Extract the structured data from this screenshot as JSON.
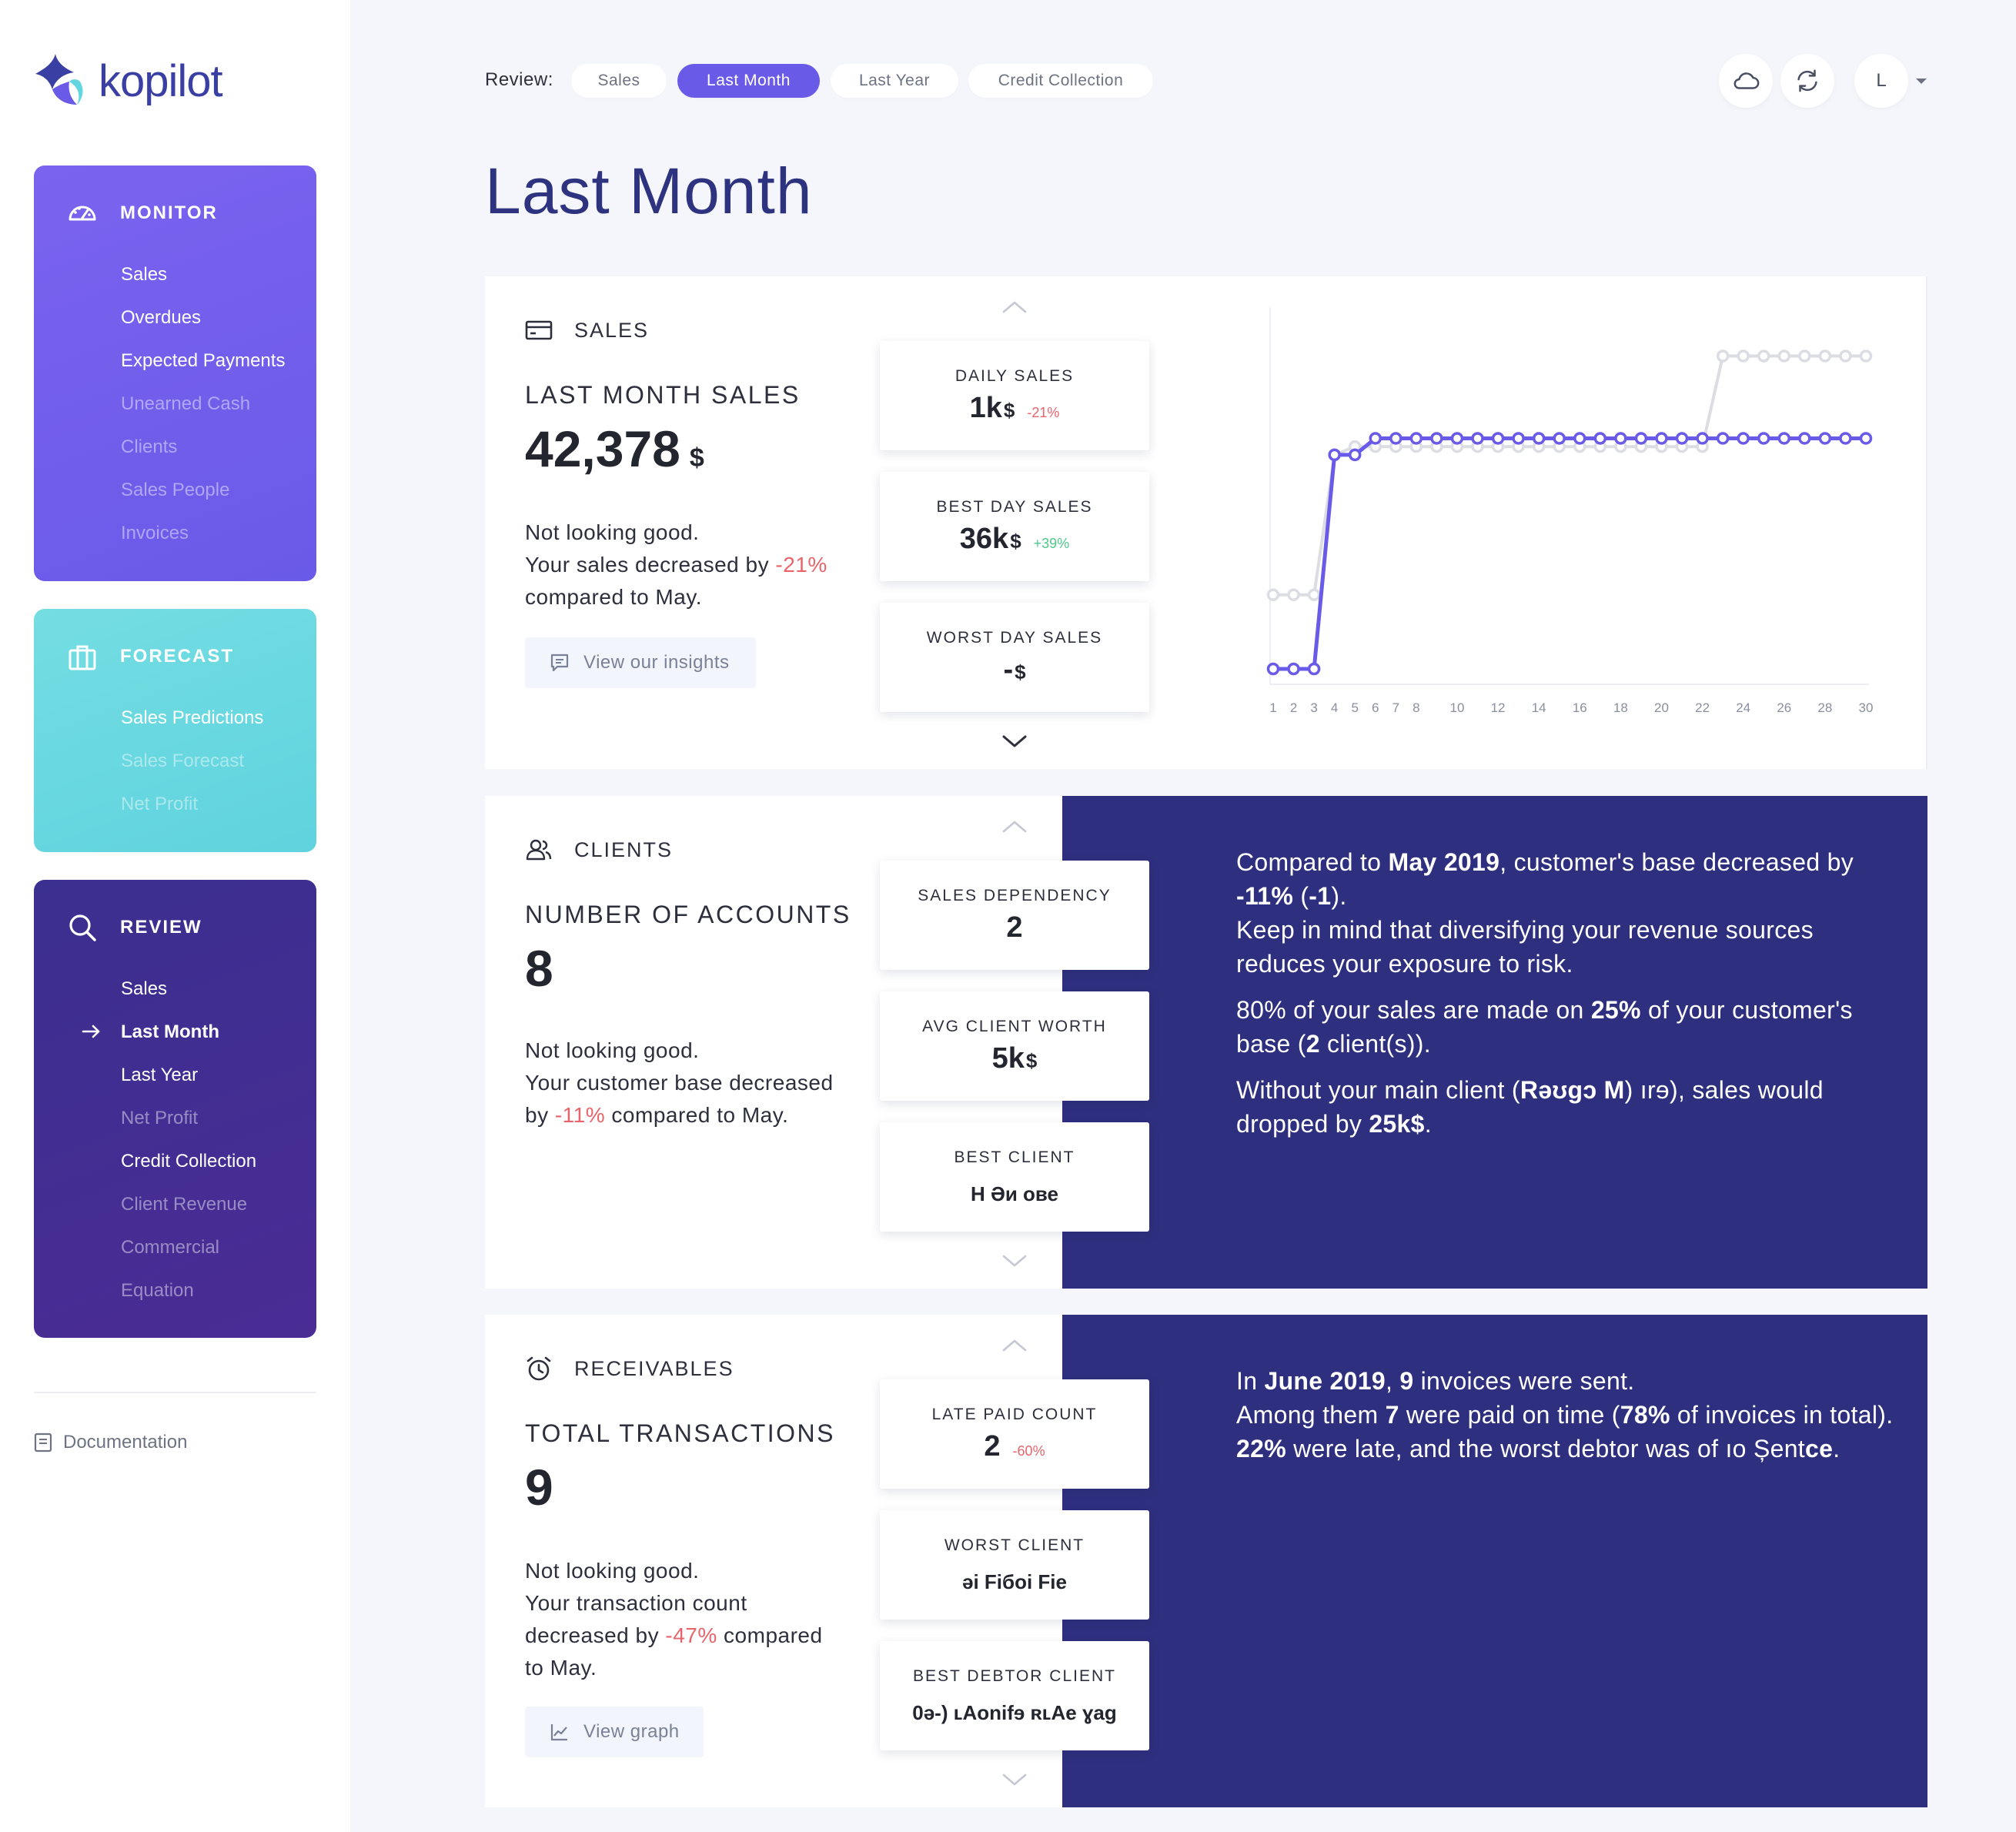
{
  "app": {
    "name": "kopilot"
  },
  "sidebar": {
    "monitor": {
      "title": "MONITOR",
      "items": [
        {
          "label": "Sales",
          "enabled": true
        },
        {
          "label": "Overdues",
          "enabled": true
        },
        {
          "label": "Expected Payments",
          "enabled": true
        },
        {
          "label": "Unearned Cash",
          "enabled": false
        },
        {
          "label": "Clients",
          "enabled": false
        },
        {
          "label": "Sales People",
          "enabled": false
        },
        {
          "label": "Invoices",
          "enabled": false
        }
      ]
    },
    "forecast": {
      "title": "FORECAST",
      "items": [
        {
          "label": "Sales Predictions",
          "enabled": true
        },
        {
          "label": "Sales Forecast",
          "enabled": false
        },
        {
          "label": "Net Profit",
          "enabled": false
        }
      ]
    },
    "review": {
      "title": "REVIEW",
      "items": [
        {
          "label": "Sales",
          "enabled": true
        },
        {
          "label": "Last Month",
          "enabled": true,
          "current": true
        },
        {
          "label": "Last Year",
          "enabled": true
        },
        {
          "label": "Net Profit",
          "enabled": false
        },
        {
          "label": "Credit Collection",
          "enabled": true
        },
        {
          "label": "Client Revenue",
          "enabled": false
        },
        {
          "label": "Commercial",
          "enabled": false
        },
        {
          "label": "Equation",
          "enabled": false
        }
      ]
    },
    "documentation": "Documentation"
  },
  "topbar": {
    "review_label": "Review:",
    "tabs": [
      "Sales",
      "Last Month",
      "Last Year",
      "Credit Collection"
    ],
    "active_tab": "Last Month",
    "user_initial": "L"
  },
  "page": {
    "title": "Last Month"
  },
  "sales": {
    "section_label": "SALES",
    "metric_label": "LAST MONTH SALES",
    "metric_value": "42,378",
    "metric_unit": "$",
    "narrative": {
      "line1": "Not looking good.",
      "line2_pre": "Your sales decreased by ",
      "line2_delta": "-21%",
      "line3": "compared to May."
    },
    "cta": "View our insights",
    "kpis": [
      {
        "label": "DAILY SALES",
        "value": "1k",
        "unit": "$",
        "delta": "-21%",
        "trend": "neg"
      },
      {
        "label": "BEST DAY SALES",
        "value": "36k",
        "unit": "$",
        "delta": "+39%",
        "trend": "pos"
      },
      {
        "label": "WORST DAY SALES",
        "value": "-",
        "unit": "$",
        "delta": "",
        "trend": ""
      }
    ]
  },
  "chart_data": {
    "type": "line",
    "title": "",
    "xlabel": "",
    "ylabel": "",
    "x_ticks": [
      1,
      2,
      3,
      4,
      5,
      6,
      7,
      8,
      10,
      12,
      14,
      16,
      18,
      20,
      22,
      24,
      26,
      28,
      30
    ],
    "x": [
      1,
      2,
      3,
      4,
      5,
      6,
      7,
      8,
      9,
      10,
      11,
      12,
      13,
      14,
      15,
      16,
      17,
      18,
      19,
      20,
      21,
      22,
      23,
      24,
      25,
      26,
      27,
      28,
      29,
      30
    ],
    "ylim": [
      0,
      43
    ],
    "grid": false,
    "legend": "none",
    "series": [
      {
        "color": "#6a5ae8",
        "values": [
          0,
          0,
          0,
          26,
          26,
          28,
          28,
          28,
          28,
          28,
          28,
          28,
          28,
          28,
          28,
          28,
          28,
          28,
          28,
          28,
          28,
          28,
          28,
          28,
          28,
          28,
          28,
          28,
          28,
          28
        ]
      },
      {
        "color": "#dcdde3",
        "values": [
          9,
          9,
          9,
          26,
          27,
          27,
          27,
          27,
          27,
          27,
          27,
          27,
          27,
          27,
          27,
          27,
          27,
          27,
          27,
          27,
          27,
          27,
          38,
          38,
          38,
          38,
          38,
          38,
          38,
          38
        ]
      }
    ]
  },
  "clients": {
    "section_label": "CLIENTS",
    "metric_label": "NUMBER OF ACCOUNTS",
    "metric_value": "8",
    "narrative": {
      "line1": "Not looking good.",
      "line2": "Your customer base decreased",
      "line3_pre": "by ",
      "line3_delta": "-11%",
      "line3_post": " compared to May."
    },
    "kpis": [
      {
        "label": "SALES DEPENDENCY",
        "value": "2"
      },
      {
        "label": "AVG CLIENT WORTH",
        "value": "5k",
        "unit": "$"
      },
      {
        "label": "BEST CLIENT",
        "value": "H       Әи ове"
      }
    ],
    "insight": {
      "p1_a": "Compared to ",
      "p1_b": "May 2019",
      "p1_c": ", customer's base decreased by ",
      "p1_d": "-11%",
      "p1_e": " (",
      "p1_f": "-1",
      "p1_g": ").",
      "p1_h": "Keep in mind that diversifying your revenue sources reduces your exposure to risk.",
      "p2_a": "80% of your sales are made on ",
      "p2_b": "25%",
      "p2_c": " of your customer's base (",
      "p2_d": "2",
      "p2_e": " client(s)).",
      "p3_a": "Without your main client (",
      "p3_b": "Rəʊɡɔ M",
      "p3_c": ") ırɘ",
      "p3_d": "), sales would dropped by ",
      "p3_e": "25k$",
      "p3_f": "."
    }
  },
  "receivables": {
    "section_label": "RECEIVABLES",
    "metric_label": "TOTAL TRANSACTIONS",
    "metric_value": "9",
    "narrative": {
      "line1": "Not looking good.",
      "line2": "Your transaction count",
      "line3_pre": "decreased by ",
      "line3_delta": "-47%",
      "line3_post": " compared",
      "line4": "to May."
    },
    "cta": "View graph",
    "kpis": [
      {
        "label": "LATE PAID COUNT",
        "value": "2",
        "delta": "-60%",
        "trend": "neg"
      },
      {
        "label": "WORST CLIENT",
        "value": "əі  Fiбoі  Fiе"
      },
      {
        "label": "BEST DEBTOR CLIENT",
        "value": "0ə-) ʟAоnifɘ ʀʟAе ɣag"
      }
    ],
    "insight": {
      "l1_a": "In ",
      "l1_b": "June 2019",
      "l1_c": ", ",
      "l1_d": "9",
      "l1_e": " invoices were sent.",
      "l2_a": "Among them ",
      "l2_b": "7",
      "l2_c": " were paid on time (",
      "l2_d": "78%",
      "l2_e": " of invoices in total).",
      "l3_a": "22%",
      "l3_b": " were late, and the worst debtor was ",
      "l3_c": "of ıo Șent",
      "l3_d": "ce",
      "l3_e": "."
    }
  },
  "icons": {
    "monitor": "gauge-icon",
    "forecast": "briefcase-icon",
    "review": "search-icon",
    "sales": "credit-card-icon",
    "clients": "users-icon",
    "receivables": "alarm-clock-icon",
    "cloud": "cloud-icon",
    "refresh": "refresh-icon"
  },
  "colors": {
    "accent": "#6a5ae8",
    "navy": "#2e2f7e",
    "forecast": "#64d6df",
    "negative": "#e8646a",
    "positive": "#4cc98a"
  }
}
